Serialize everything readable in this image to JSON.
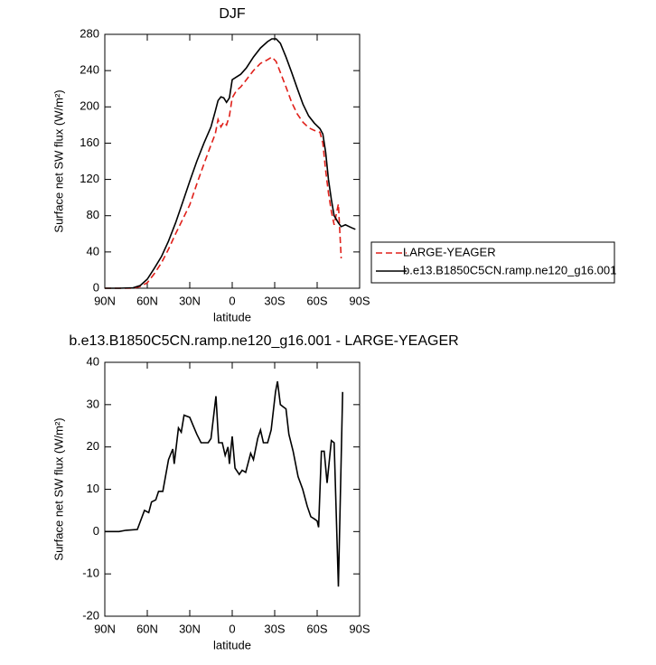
{
  "chart_data": [
    {
      "type": "line",
      "title": "DJF",
      "xlabel": "latitude",
      "ylabel": "Surface net SW flux (W/m²)",
      "x": [
        90,
        80,
        70,
        65,
        60,
        55,
        50,
        45,
        40,
        35,
        30,
        25,
        20,
        15,
        12,
        10,
        8,
        6,
        4,
        2,
        0,
        -3,
        -6,
        -10,
        -15,
        -20,
        -25,
        -28,
        -31,
        -34,
        -38,
        -42,
        -46,
        -50,
        -54,
        -58,
        -62,
        -64,
        -66,
        -68,
        -70,
        -72,
        -75,
        -77,
        -80,
        -84,
        -87
      ],
      "series": [
        {
          "name": "LARGE-YEAGER",
          "color": "#e0201a",
          "dash": true,
          "values": [
            0,
            0,
            0,
            2,
            6,
            16,
            28,
            43,
            60,
            76,
            92,
            115,
            137,
            158,
            170,
            186,
            178,
            183,
            180,
            190,
            210,
            218,
            222,
            230,
            240,
            248,
            252,
            255,
            250,
            238,
            222,
            205,
            192,
            183,
            177,
            174,
            172,
            160,
            130,
            105,
            85,
            70,
            93,
            33,
            null,
            null,
            null
          ]
        },
        {
          "name": "b.e13.B1850C5CN.ramp.ne120_g16.001",
          "color": "#000000",
          "dash": false,
          "values": [
            0,
            0,
            0.5,
            3,
            10,
            22,
            35,
            52,
            72,
            95,
            118,
            140,
            160,
            178,
            195,
            207,
            211,
            210,
            205,
            210,
            230,
            233,
            236,
            243,
            255,
            265,
            272,
            275,
            275,
            270,
            255,
            238,
            220,
            203,
            190,
            182,
            176,
            170,
            150,
            120,
            98,
            80,
            72,
            68,
            70,
            67,
            65
          ]
        }
      ],
      "xlim": [
        90,
        -90
      ],
      "xticks": [
        {
          "value": 90,
          "label": "90N"
        },
        {
          "value": 60,
          "label": "60N"
        },
        {
          "value": 30,
          "label": "30N"
        },
        0,
        {
          "value": -30,
          "label": "30S"
        },
        {
          "value": -60,
          "label": "60S"
        },
        {
          "value": -90,
          "label": "90S"
        }
      ],
      "ylim": [
        0,
        280
      ],
      "yticks": [
        0,
        40,
        80,
        120,
        160,
        200,
        240,
        280
      ],
      "legend": true
    },
    {
      "type": "line",
      "title": "b.e13.B1850C5CN.ramp.ne120_g16.001 - LARGE-YEAGER",
      "xlabel": "latitude",
      "ylabel": "Surface net SW flux (W/m²)",
      "x": [
        90,
        80,
        75,
        67,
        62,
        59,
        57,
        54,
        52,
        49,
        45,
        42,
        41,
        38,
        36,
        34,
        30,
        27.5,
        25,
        22,
        17,
        15,
        11.5,
        9.6,
        7,
        5,
        3,
        2,
        0,
        -2,
        -5,
        -7,
        -9.5,
        -13,
        -15,
        -18,
        -20,
        -22,
        -25,
        -27.5,
        -30.6,
        -32,
        -34,
        -36,
        -38,
        -40,
        -43,
        -46.5,
        -49.8,
        -53,
        -55.5,
        -58,
        -60,
        -61,
        -63,
        -65,
        -67,
        -70,
        -72,
        -75,
        -78
      ],
      "series": [
        {
          "name": "b.e13.B1850C5CN.ramp.ne120_g16.001 - LARGE-YEAGER",
          "color": "#000000",
          "dash": false,
          "values": [
            0,
            0,
            0.3,
            0.5,
            5,
            4.5,
            7,
            7.5,
            9.5,
            9.5,
            17,
            19.5,
            16,
            24.5,
            23.5,
            27.5,
            27,
            25,
            23,
            21,
            21,
            22,
            32,
            21,
            21,
            18,
            20,
            16,
            22.5,
            15,
            13.5,
            14.5,
            14,
            18.5,
            17,
            22,
            24,
            21,
            21,
            24,
            33,
            35.5,
            30,
            29.5,
            29,
            23,
            19,
            13,
            10,
            6,
            3.5,
            3,
            2.5,
            1,
            19,
            19,
            11.5,
            21.5,
            21,
            -13,
            33
          ]
        }
      ],
      "xlim": [
        90,
        -90
      ],
      "xticks": [
        {
          "value": 90,
          "label": "90N"
        },
        {
          "value": 60,
          "label": "60N"
        },
        {
          "value": 30,
          "label": "30N"
        },
        0,
        {
          "value": -30,
          "label": "30S"
        },
        {
          "value": -60,
          "label": "60S"
        },
        {
          "value": -90,
          "label": "90S"
        }
      ],
      "ylim": [
        -20,
        40
      ],
      "yticks": [
        -20,
        -10,
        0,
        10,
        20,
        30,
        40
      ],
      "legend": false
    }
  ]
}
